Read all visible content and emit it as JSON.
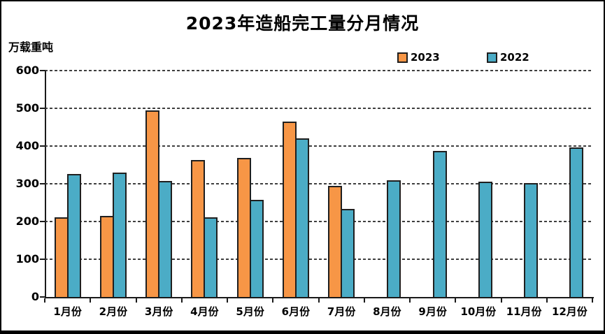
{
  "title": "2023年造船完工量分月情况",
  "y_axis_unit": "万载重吨",
  "legend": {
    "items": [
      {
        "label": "2023",
        "color": "#F79646"
      },
      {
        "label": "2022",
        "color": "#4BACC6"
      }
    ]
  },
  "colors": {
    "series_2023": "#F79646",
    "series_2022": "#4BACC6",
    "bar_border": "#1F1F1F",
    "axis": "#1A1A1A",
    "grid": "#3F3F3F",
    "text": "#000000",
    "background": "#FFFFFF",
    "frame_border": "#000000"
  },
  "chart_data": {
    "type": "bar",
    "title": "2023年造船完工量分月情况",
    "xlabel": "",
    "ylabel": "万载重吨",
    "ylim": [
      0,
      600
    ],
    "yticks": [
      600,
      500,
      400,
      300,
      200,
      100,
      0
    ],
    "grid": "horizontal-dashed",
    "legend_position": "top-right",
    "categories": [
      "1月份",
      "2月份",
      "3月份",
      "4月份",
      "5月份",
      "6月份",
      "7月份",
      "8月份",
      "9月份",
      "10月份",
      "11月份",
      "12月份"
    ],
    "series": [
      {
        "name": "2023",
        "color": "#F79646",
        "values": [
          211,
          214,
          494,
          363,
          368,
          465,
          294,
          null,
          null,
          null,
          null,
          null
        ]
      },
      {
        "name": "2022",
        "color": "#4BACC6",
        "values": [
          326,
          329,
          307,
          212,
          258,
          420,
          233,
          309,
          387,
          306,
          302,
          396
        ]
      }
    ]
  }
}
